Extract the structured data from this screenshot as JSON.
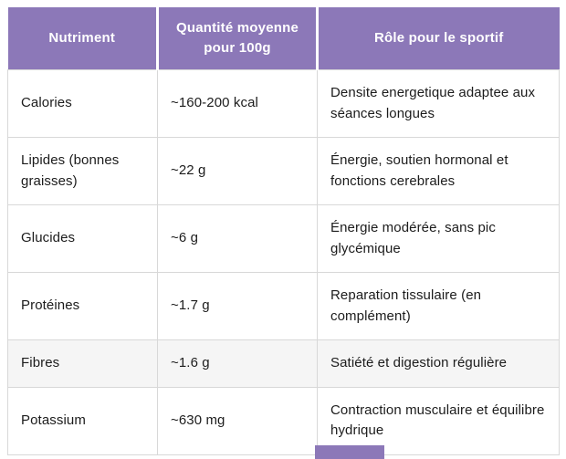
{
  "table": {
    "header": {
      "columns": [
        "Nutriment",
        "Quantité moyenne pour 100g",
        "Rôle pour le sportif"
      ]
    },
    "rows": [
      {
        "nutriment": "Calories",
        "quantite": "~160-200 kcal",
        "role": "Densite energetique adaptee aux séances longues",
        "highlighted": false
      },
      {
        "nutriment": "Lipides (bonnes graisses)",
        "quantite": "~22 g",
        "role": "Énergie, soutien hormonal et fonctions cerebrales",
        "highlighted": false
      },
      {
        "nutriment": "Glucides",
        "quantite": "~6 g",
        "role": "Énergie modérée, sans pic glycémique",
        "highlighted": false
      },
      {
        "nutriment": "Protéines",
        "quantite": "~1.7 g",
        "role": "Reparation tissulaire (en complément)",
        "highlighted": false
      },
      {
        "nutriment": "Fibres",
        "quantite": "~1.6 g",
        "role": "Satiété et digestion régulière",
        "highlighted": true
      },
      {
        "nutriment": "Potassium",
        "quantite": "~630 mg",
        "role": "Contraction musculaire et équilibre hydrique",
        "highlighted": false
      }
    ]
  },
  "colors": {
    "header_bg": "#8c78b8",
    "header_text": "#ffffff",
    "cell_border": "#d8d8d8",
    "row_highlight_bg": "#f5f5f5",
    "body_text": "#1c1c1c"
  },
  "partial_element": {
    "color": "#8c78b8"
  }
}
